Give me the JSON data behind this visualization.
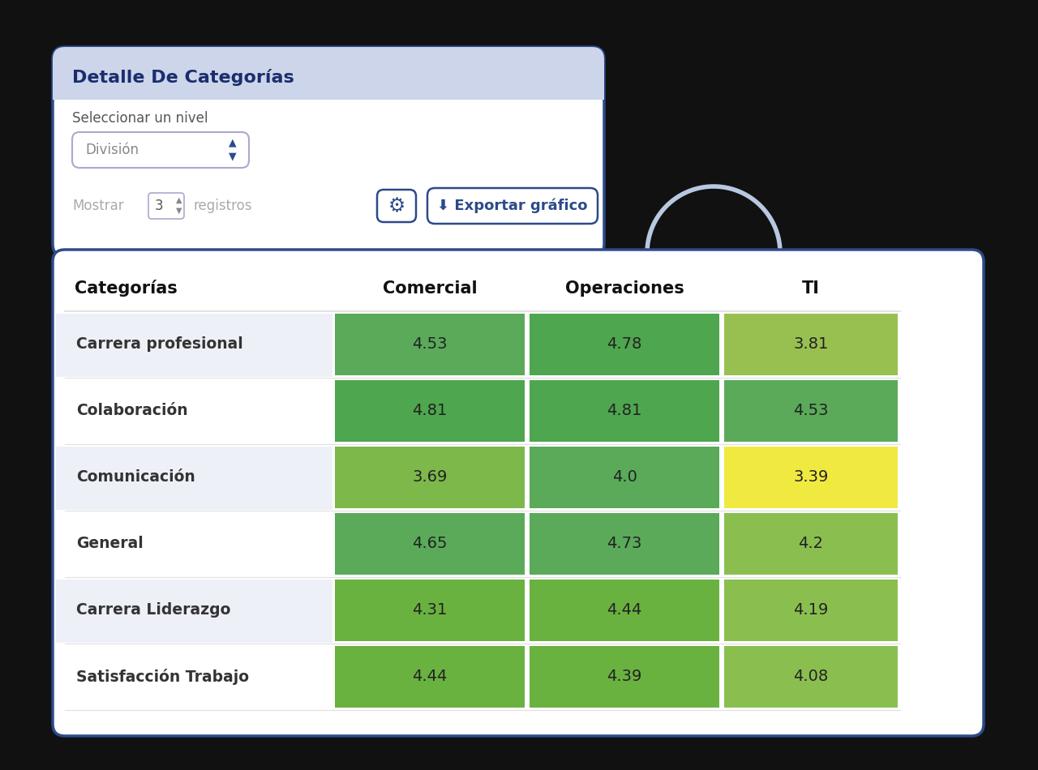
{
  "title": "Detalle De Categorías",
  "select_label": "Seleccionar un nivel",
  "select_value": "División",
  "show_label": "Mostrar",
  "show_value": "3",
  "show_suffix": "registros",
  "export_btn": "⬇ Exportar gráfico",
  "col_headers": [
    "Categorías",
    "Comercial",
    "Operaciones",
    "TI"
  ],
  "rows": [
    [
      "Carrera profesional",
      4.53,
      4.78,
      3.81
    ],
    [
      "Colaboración",
      4.81,
      4.81,
      4.53
    ],
    [
      "Comunicación",
      3.69,
      4.0,
      3.39
    ],
    [
      "General",
      4.65,
      4.73,
      4.2
    ],
    [
      "Carrera Liderazgo",
      4.31,
      4.44,
      4.19
    ],
    [
      "Satisfacción Trabajo",
      4.44,
      4.39,
      4.08
    ]
  ],
  "bg_outer": "#111111",
  "bg_upper_card": "#ffffff",
  "bg_upper_header": "#cdd5ea",
  "bg_lower_card": "#ffffff",
  "border_color_upper": "#2d4a8a",
  "border_color_lower": "#2d4a8a",
  "row_alt_color": "#eef0f8",
  "row_white": "#ffffff",
  "header_text_color": "#1a2e6e",
  "cell_text_color": "#333333",
  "col_header_color": "#111111",
  "arch_color": "#b8c8e0",
  "vmin": 3.2,
  "vmax": 5.0,
  "cell_colors": [
    [
      "#5aaa5a",
      "#4ea64e",
      "#98c050"
    ],
    [
      "#4ea64e",
      "#4ea64e",
      "#5aaa5a"
    ],
    [
      "#7db84a",
      "#5aaa5a",
      "#f0ea40"
    ],
    [
      "#5aaa5a",
      "#5aaa5a",
      "#8abf50"
    ],
    [
      "#6ab240",
      "#6ab240",
      "#8abf50"
    ],
    [
      "#6ab240",
      "#6ab240",
      "#8abf50"
    ]
  ]
}
